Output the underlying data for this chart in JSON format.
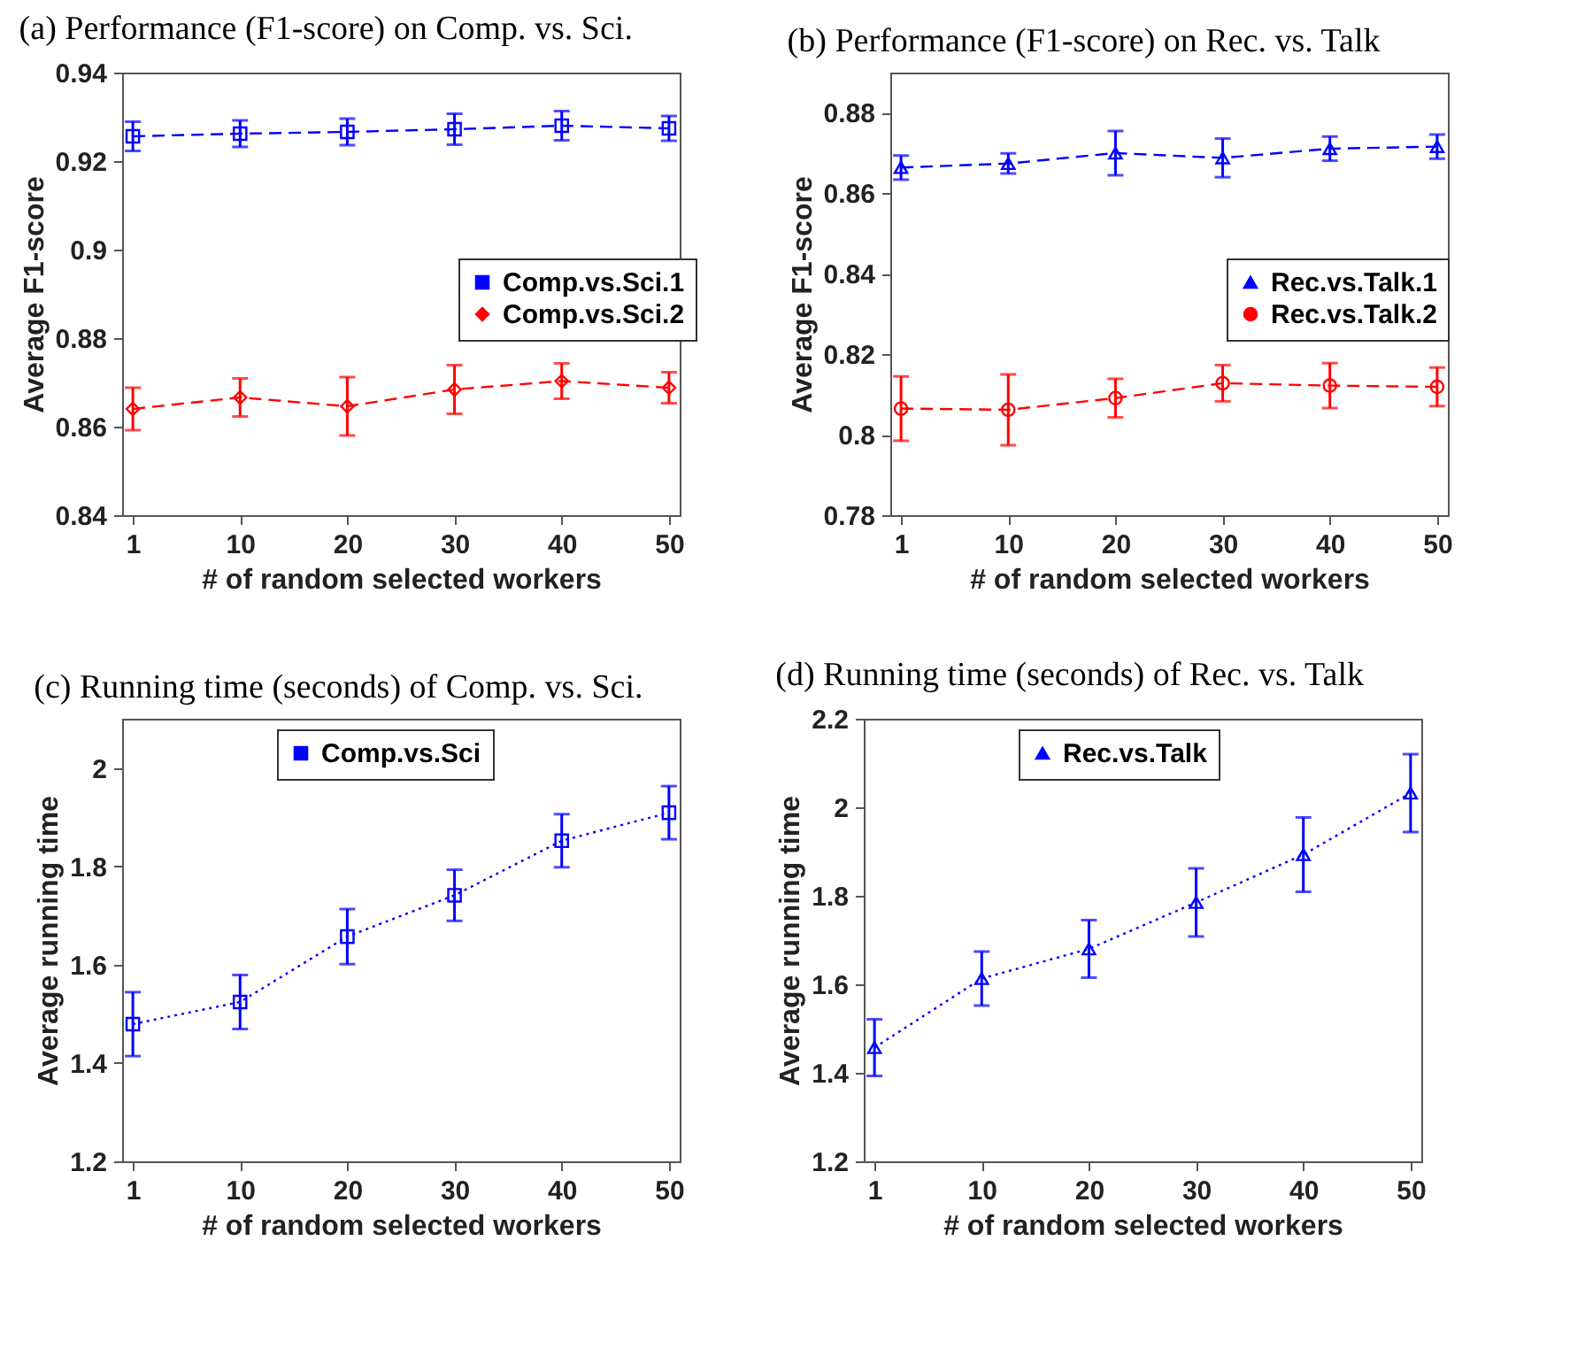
{
  "chart_data": [
    {
      "type": "line",
      "title": "(a) Performance (F1-score) on Comp. vs. Sci.",
      "xlabel": "# of random selected workers",
      "ylabel": "Average F1-score",
      "categories": [
        "1",
        "10",
        "20",
        "30",
        "40",
        "50"
      ],
      "ylim": [
        0.84,
        0.94
      ],
      "yticks": [
        0.84,
        0.86,
        0.88,
        0.9,
        0.92,
        0.94
      ],
      "legend": "right",
      "line_style": "dashed",
      "series": [
        {
          "name": "Comp.vs.Sci.1",
          "color": "#0000ff",
          "marker": "square",
          "values": [
            0.9256,
            0.9262,
            0.9266,
            0.9272,
            0.928,
            0.9274
          ],
          "errors": [
            0.0033,
            0.003,
            0.003,
            0.0035,
            0.0033,
            0.0028
          ]
        },
        {
          "name": "Comp.vs.Sci.2",
          "color": "#ff0000",
          "marker": "diamond",
          "values": [
            0.864,
            0.8666,
            0.8646,
            0.8684,
            0.8703,
            0.8688
          ],
          "errors": [
            0.0048,
            0.0043,
            0.0066,
            0.0055,
            0.004,
            0.0035
          ]
        }
      ]
    },
    {
      "type": "line",
      "title": "(b) Performance (F1-score) on Rec. vs. Talk",
      "xlabel": "# of random selected workers",
      "ylabel": "Average F1-score",
      "categories": [
        "1",
        "10",
        "20",
        "30",
        "40",
        "50"
      ],
      "ylim": [
        0.78,
        0.89
      ],
      "yticks": [
        0.78,
        0.8,
        0.82,
        0.84,
        0.86,
        0.88
      ],
      "legend": "right",
      "line_style": "dashed",
      "series": [
        {
          "name": "Rec.vs.Talk.1",
          "color": "#0000ff",
          "marker": "triangle",
          "values": [
            0.8664,
            0.8674,
            0.87,
            0.8688,
            0.8711,
            0.8716
          ],
          "errors": [
            0.003,
            0.0025,
            0.0055,
            0.0048,
            0.003,
            0.003
          ]
        },
        {
          "name": "Rec.vs.Talk.2",
          "color": "#ff0000",
          "marker": "circle",
          "values": [
            0.8065,
            0.8062,
            0.8091,
            0.8128,
            0.8122,
            0.8119
          ],
          "errors": [
            0.008,
            0.0088,
            0.0048,
            0.0045,
            0.0056,
            0.0048
          ]
        }
      ]
    },
    {
      "type": "line",
      "title": "(c) Running time (seconds) of Comp. vs. Sci.",
      "xlabel": "# of random selected workers",
      "ylabel": "Average running time",
      "categories": [
        "1",
        "10",
        "20",
        "30",
        "40",
        "50"
      ],
      "ylim": [
        1.2,
        2.1
      ],
      "yticks": [
        1.2,
        1.4,
        1.6,
        1.8,
        2
      ],
      "legend": "top",
      "line_style": "dotted",
      "series": [
        {
          "name": "Comp.vs.Sci",
          "color": "#0000ff",
          "marker": "square",
          "values": [
            1.479,
            1.524,
            1.657,
            1.741,
            1.852,
            1.909
          ],
          "errors": [
            0.065,
            0.055,
            0.056,
            0.052,
            0.054,
            0.054
          ]
        }
      ]
    },
    {
      "type": "line",
      "title": "(d) Running time (seconds) of Rec. vs. Talk",
      "xlabel": "# of random selected workers",
      "ylabel": "Average running time",
      "categories": [
        "1",
        "10",
        "20",
        "30",
        "40",
        "50"
      ],
      "ylim": [
        1.2,
        2.2
      ],
      "yticks": [
        1.2,
        1.4,
        1.6,
        1.8,
        2,
        2.2
      ],
      "legend": "top",
      "line_style": "dotted",
      "series": [
        {
          "name": "Rec.vs.Talk",
          "color": "#0000ff",
          "marker": "triangle",
          "values": [
            1.457,
            1.613,
            1.68,
            1.785,
            1.893,
            2.032
          ],
          "errors": [
            0.064,
            0.061,
            0.065,
            0.077,
            0.084,
            0.088
          ]
        }
      ]
    }
  ]
}
